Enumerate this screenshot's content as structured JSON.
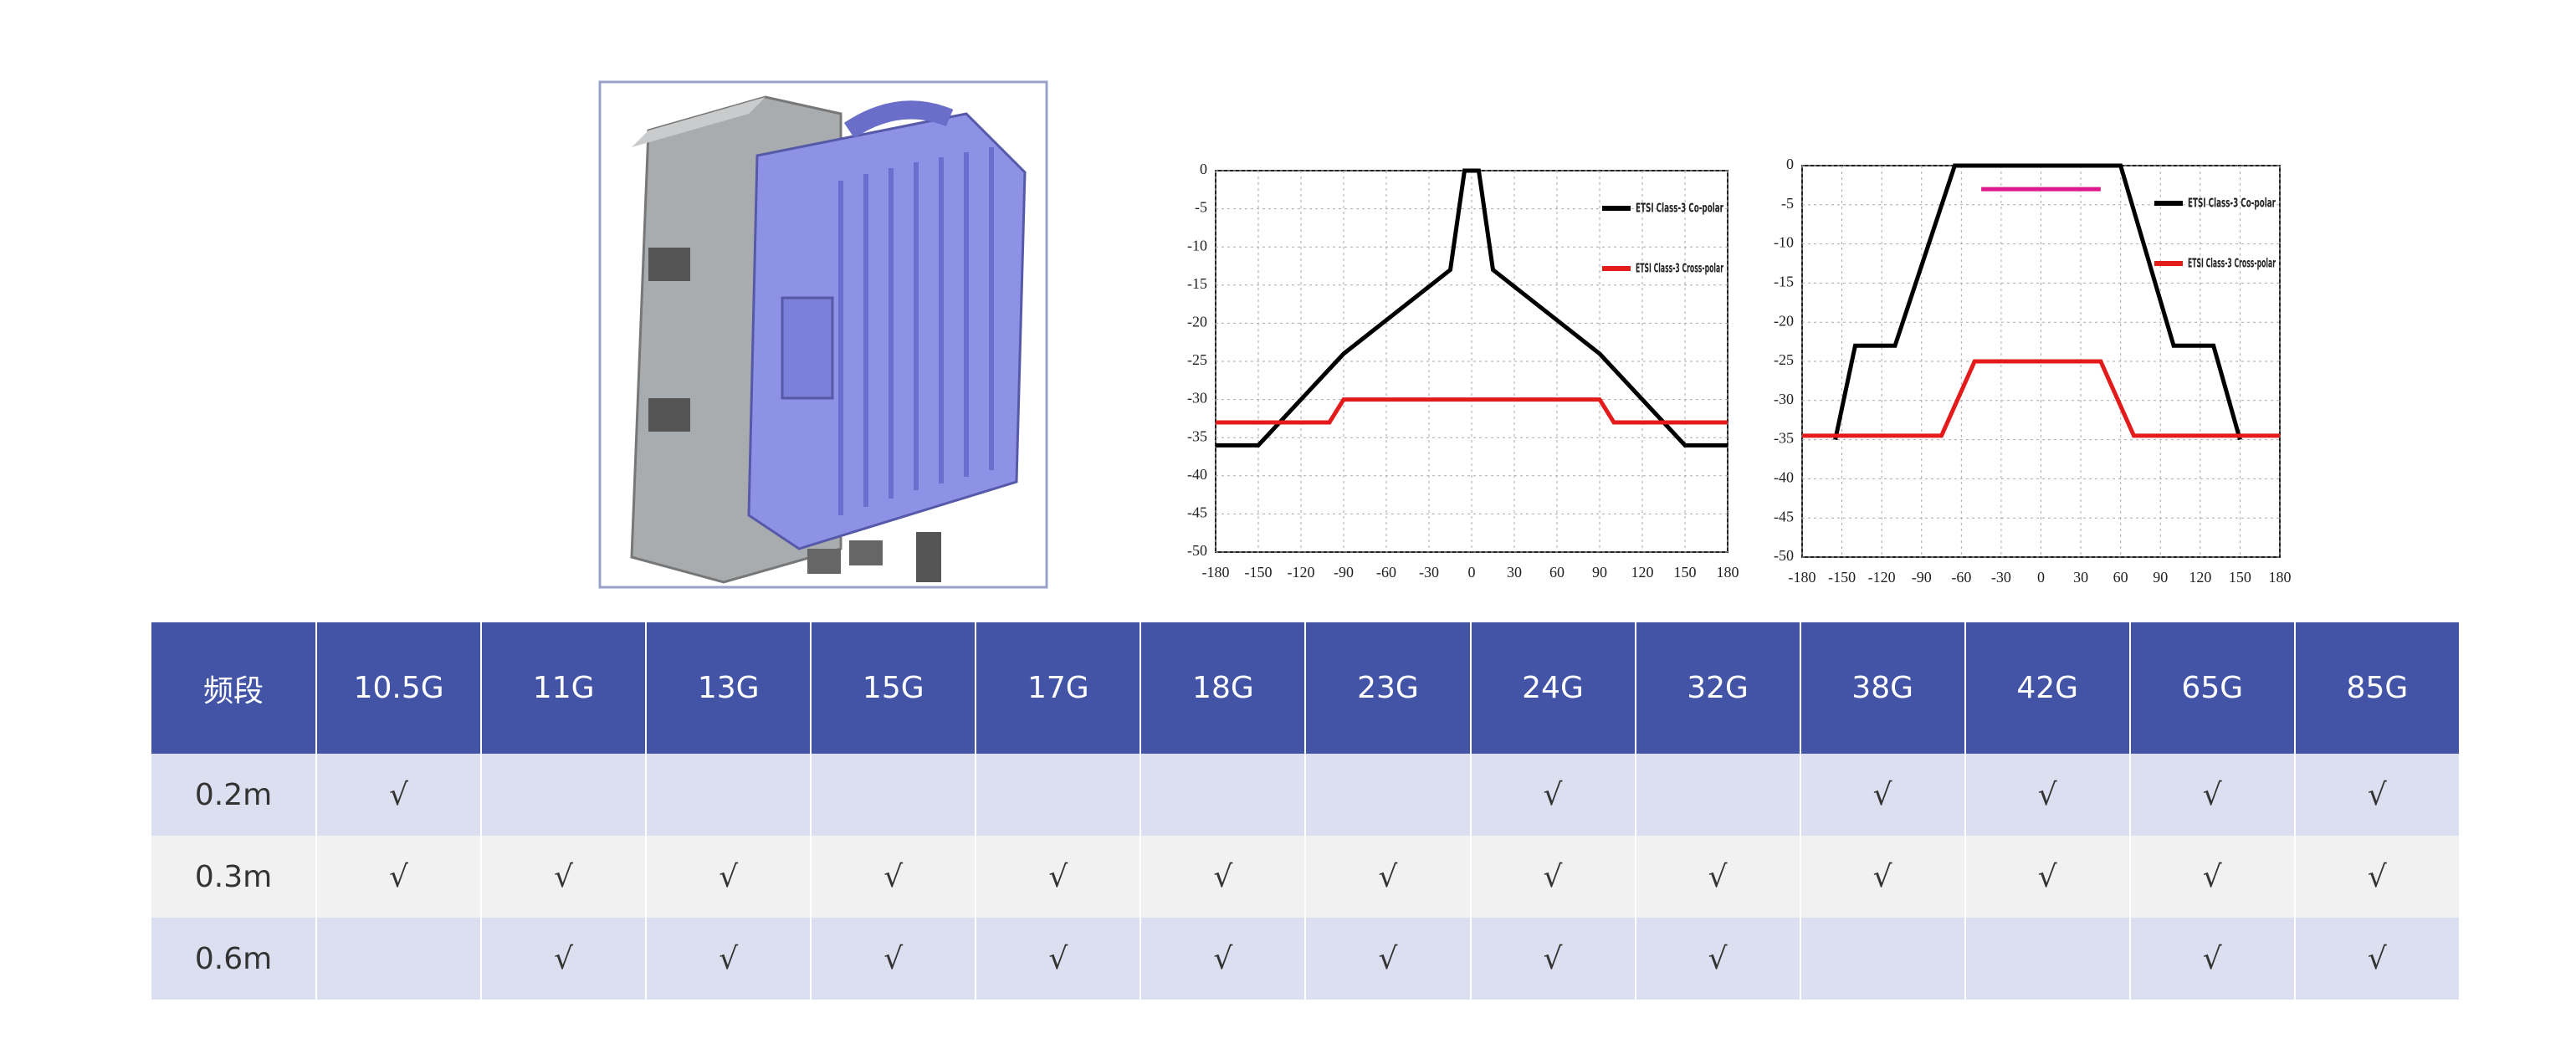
{
  "chart_data": [
    {
      "type": "line",
      "xlim": [
        -180,
        180
      ],
      "ylim": [
        -50,
        0
      ],
      "xticks": [
        -180,
        -150,
        -120,
        -90,
        -60,
        -30,
        0,
        30,
        60,
        90,
        120,
        150,
        180
      ],
      "yticks": [
        0,
        -5,
        -10,
        -15,
        -20,
        -25,
        -30,
        -35,
        -40,
        -45,
        -50
      ],
      "grid": true,
      "legend": "upper right",
      "series": [
        {
          "name": "ETSI Class-3 Co-polar",
          "color": "#000000",
          "x": [
            -180,
            -150,
            -90,
            -15,
            -5,
            5,
            15,
            90,
            150,
            180
          ],
          "values": [
            -36,
            -36,
            -24,
            -13,
            0,
            0,
            -13,
            -24,
            -36,
            -36
          ]
        },
        {
          "name": "ETSI Class-3 Cross-polar",
          "color": "#e31b1b",
          "x": [
            -180,
            -100,
            -90,
            90,
            100,
            180
          ],
          "values": [
            -33,
            -33,
            -30,
            -30,
            -33,
            -33
          ]
        }
      ]
    },
    {
      "type": "line",
      "xlim": [
        -180,
        180
      ],
      "ylim": [
        -50,
        0
      ],
      "xticks": [
        -180,
        -150,
        -120,
        -90,
        -60,
        -30,
        0,
        30,
        60,
        90,
        120,
        150,
        180
      ],
      "yticks": [
        0,
        -5,
        -10,
        -15,
        -20,
        -25,
        -30,
        -35,
        -40,
        -45,
        -50
      ],
      "grid": true,
      "legend": "upper right",
      "series": [
        {
          "name": "ETSI Class-3 Co-polar",
          "color": "#000000",
          "x": [
            -155,
            -140,
            -110,
            -65,
            60,
            100,
            130,
            150
          ],
          "values": [
            -35,
            -23,
            -23,
            0,
            0,
            -23,
            -23,
            -35
          ]
        },
        {
          "name": "ETSI Class-3 Cross-polar",
          "color": "#e31b1b",
          "x": [
            -180,
            -75,
            -50,
            45,
            70,
            180
          ],
          "values": [
            -34.5,
            -34.5,
            -25,
            -25,
            -34.5,
            -34.5
          ]
        },
        {
          "color": "#e0188c",
          "x": [
            -45,
            45
          ],
          "values": [
            -3,
            -3
          ]
        }
      ]
    }
  ],
  "table": {
    "header": [
      "频段",
      "10.5G",
      "11G",
      "13G",
      "15G",
      "17G",
      "18G",
      "23G",
      "24G",
      "32G",
      "38G",
      "42G",
      "65G",
      "85G"
    ],
    "rows": [
      [
        "0.2m",
        "√",
        null,
        null,
        null,
        null,
        null,
        null,
        "√",
        null,
        "√",
        "√",
        "√",
        "√"
      ],
      [
        "0.3m",
        "√",
        "√",
        "√",
        "√",
        "√",
        "√",
        "√",
        "√",
        "√",
        "√",
        "√",
        "√",
        "√"
      ],
      [
        "0.6m",
        null,
        "√",
        "√",
        "√",
        "√",
        "√",
        "√",
        "√",
        "√",
        null,
        null,
        "√",
        "√"
      ]
    ]
  }
}
